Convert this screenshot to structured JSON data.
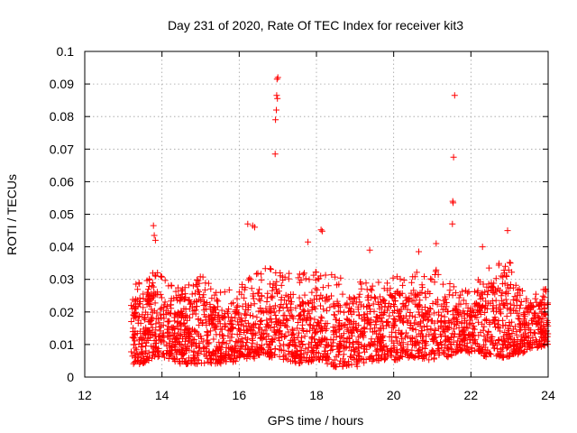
{
  "chart_data": {
    "type": "scatter",
    "title": "Day 231 of 2020, Rate Of TEC Index for receiver kit3",
    "xlabel": "GPS time / hours",
    "ylabel": "ROTI / TECUs",
    "xlim": [
      12,
      24
    ],
    "ylim": [
      0,
      0.1
    ],
    "xticks": [
      "12",
      "14",
      "16",
      "18",
      "20",
      "22",
      "24"
    ],
    "yticks": [
      "0",
      "0.01",
      "0.02",
      "0.03",
      "0.04",
      "0.05",
      "0.06",
      "0.07",
      "0.08",
      "0.09",
      "0.1"
    ],
    "grid": true,
    "marker": "+",
    "color": "#ff0000",
    "series": [
      {
        "name": "ROTI",
        "notable_points": [
          {
            "x": 16.98,
            "y": 0.0915
          },
          {
            "x": 17.0,
            "y": 0.092
          },
          {
            "x": 16.97,
            "y": 0.0865
          },
          {
            "x": 16.99,
            "y": 0.0855
          },
          {
            "x": 16.96,
            "y": 0.082
          },
          {
            "x": 16.94,
            "y": 0.079
          },
          {
            "x": 16.93,
            "y": 0.0685
          },
          {
            "x": 21.58,
            "y": 0.0865
          },
          {
            "x": 21.55,
            "y": 0.0675
          },
          {
            "x": 21.53,
            "y": 0.054
          },
          {
            "x": 21.54,
            "y": 0.0535
          },
          {
            "x": 21.52,
            "y": 0.047
          },
          {
            "x": 13.78,
            "y": 0.0465
          },
          {
            "x": 13.8,
            "y": 0.0435
          },
          {
            "x": 13.83,
            "y": 0.042
          },
          {
            "x": 16.22,
            "y": 0.047
          },
          {
            "x": 16.35,
            "y": 0.0465
          },
          {
            "x": 16.4,
            "y": 0.046
          },
          {
            "x": 18.12,
            "y": 0.0452
          },
          {
            "x": 18.15,
            "y": 0.0448
          },
          {
            "x": 17.78,
            "y": 0.0415
          },
          {
            "x": 21.1,
            "y": 0.041
          },
          {
            "x": 22.3,
            "y": 0.04
          },
          {
            "x": 22.95,
            "y": 0.045
          },
          {
            "x": 19.38,
            "y": 0.039
          },
          {
            "x": 20.65,
            "y": 0.0385
          }
        ],
        "bulk_envelope": [
          {
            "x": 13.2,
            "low": 0.004,
            "high": 0.028
          },
          {
            "x": 13.5,
            "low": 0.004,
            "high": 0.03
          },
          {
            "x": 13.8,
            "low": 0.006,
            "high": 0.035
          },
          {
            "x": 14.1,
            "low": 0.006,
            "high": 0.03
          },
          {
            "x": 14.5,
            "low": 0.004,
            "high": 0.027
          },
          {
            "x": 15.0,
            "low": 0.004,
            "high": 0.032
          },
          {
            "x": 15.5,
            "low": 0.004,
            "high": 0.026
          },
          {
            "x": 16.0,
            "low": 0.005,
            "high": 0.028
          },
          {
            "x": 16.5,
            "low": 0.006,
            "high": 0.033
          },
          {
            "x": 17.0,
            "low": 0.006,
            "high": 0.034
          },
          {
            "x": 17.5,
            "low": 0.004,
            "high": 0.032
          },
          {
            "x": 18.0,
            "low": 0.005,
            "high": 0.033
          },
          {
            "x": 18.5,
            "low": 0.003,
            "high": 0.031
          },
          {
            "x": 19.0,
            "low": 0.003,
            "high": 0.03
          },
          {
            "x": 19.5,
            "low": 0.005,
            "high": 0.03
          },
          {
            "x": 20.0,
            "low": 0.005,
            "high": 0.031
          },
          {
            "x": 20.5,
            "low": 0.006,
            "high": 0.034
          },
          {
            "x": 21.0,
            "low": 0.005,
            "high": 0.034
          },
          {
            "x": 21.4,
            "low": 0.006,
            "high": 0.03
          },
          {
            "x": 21.7,
            "low": 0.008,
            "high": 0.027
          },
          {
            "x": 22.0,
            "low": 0.007,
            "high": 0.028
          },
          {
            "x": 22.5,
            "low": 0.006,
            "high": 0.035
          },
          {
            "x": 23.0,
            "low": 0.006,
            "high": 0.036
          },
          {
            "x": 23.5,
            "low": 0.008,
            "high": 0.028
          },
          {
            "x": 24.0,
            "low": 0.01,
            "high": 0.027
          }
        ]
      }
    ]
  }
}
